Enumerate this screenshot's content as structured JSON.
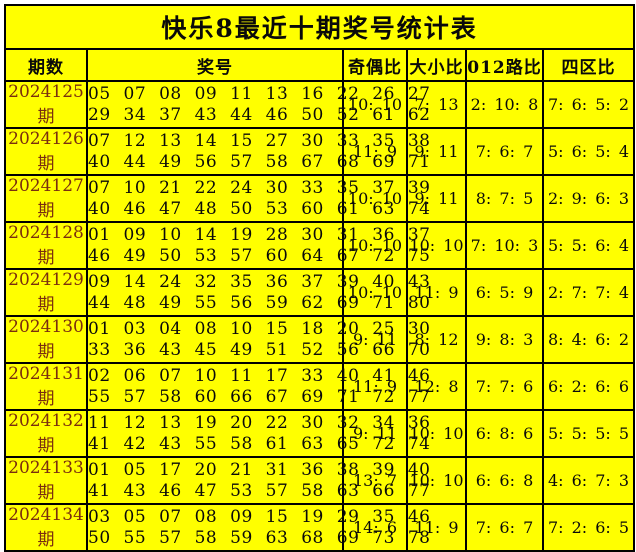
{
  "colors": {
    "bg": "#ffff00",
    "border": "#000000",
    "text": "#0a0a0a",
    "period": "#7a2e0e",
    "page": "#ffffff"
  },
  "chart_data": {
    "type": "table",
    "title": "快乐8最近十期奖号统计表",
    "columns": [
      "期数",
      "奖号",
      "奇偶比",
      "大小比",
      "012路比",
      "四区比"
    ],
    "rows": [
      {
        "period": "2024125期",
        "numbers_line1": "05 07 08 09 11 13 16 22 26 27",
        "numbers_line2": "29 34 37 43 44 46 50 52 61 62",
        "odd_even_ratio": "10: 10",
        "big_small_ratio": "7: 13",
        "road_012_ratio": "2: 10: 8",
        "four_zone_ratio": "7: 6: 5: 2"
      },
      {
        "period": "2024126期",
        "numbers_line1": "07 12 13 14 15 27 30 33 35 38",
        "numbers_line2": "40 44 49 56 57 58 67 68 69 71",
        "odd_even_ratio": "11: 9",
        "big_small_ratio": "9: 11",
        "road_012_ratio": "7: 6: 7",
        "four_zone_ratio": "5: 6: 5: 4"
      },
      {
        "period": "2024127期",
        "numbers_line1": "07 10 21 22 24 30 33 35 37 39",
        "numbers_line2": "40 46 47 48 50 53 60 61 63 74",
        "odd_even_ratio": "10: 10",
        "big_small_ratio": "9: 11",
        "road_012_ratio": "8: 7: 5",
        "four_zone_ratio": "2: 9: 6: 3"
      },
      {
        "period": "2024128期",
        "numbers_line1": "01 09 10 14 19 28 30 31 36 37",
        "numbers_line2": "46 49 50 53 57 60 64 67 72 75",
        "odd_even_ratio": "10: 10",
        "big_small_ratio": "10: 10",
        "road_012_ratio": "7: 10: 3",
        "four_zone_ratio": "5: 5: 6: 4"
      },
      {
        "period": "2024129期",
        "numbers_line1": "09 14 24 32 35 36 37 39 40 43",
        "numbers_line2": "44 48 49 55 56 59 62 69 71 80",
        "odd_even_ratio": "10: 10",
        "big_small_ratio": "11: 9",
        "road_012_ratio": "6: 5: 9",
        "four_zone_ratio": "2: 7: 7: 4"
      },
      {
        "period": "2024130期",
        "numbers_line1": "01 03 04 08 10 15 18 20 25 30",
        "numbers_line2": "33 36 43 45 49 51 52 56 66 70",
        "odd_even_ratio": "9: 11",
        "big_small_ratio": "8: 12",
        "road_012_ratio": "9: 8: 3",
        "four_zone_ratio": "8: 4: 6: 2"
      },
      {
        "period": "2024131期",
        "numbers_line1": "02 06 07 10 11 17 33 40 41 46",
        "numbers_line2": "55 57 58 60 66 67 69 71 72 77",
        "odd_even_ratio": "11: 9",
        "big_small_ratio": "12: 8",
        "road_012_ratio": "7: 7: 6",
        "four_zone_ratio": "6: 2: 6: 6"
      },
      {
        "period": "2024132期",
        "numbers_line1": "11 12 13 19 20 22 30 32 34 36",
        "numbers_line2": "41 42 43 55 58 61 63 65 72 74",
        "odd_even_ratio": "9: 11",
        "big_small_ratio": "10: 10",
        "road_012_ratio": "6: 8: 6",
        "four_zone_ratio": "5: 5: 5: 5"
      },
      {
        "period": "2024133期",
        "numbers_line1": "01 05 17 20 21 31 36 38 39 40",
        "numbers_line2": "41 43 46 47 53 57 58 63 66 77",
        "odd_even_ratio": "13: 7",
        "big_small_ratio": "10: 10",
        "road_012_ratio": "6: 6: 8",
        "four_zone_ratio": "4: 6: 7: 3"
      },
      {
        "period": "2024134期",
        "numbers_line1": "03 05 07 08 09 15 19 29 35 46",
        "numbers_line2": "50 55 57 58 59 63 68 69 73 78",
        "odd_even_ratio": "14: 6",
        "big_small_ratio": "11: 9",
        "road_012_ratio": "7: 6: 7",
        "four_zone_ratio": "7: 2: 6: 5"
      }
    ]
  }
}
